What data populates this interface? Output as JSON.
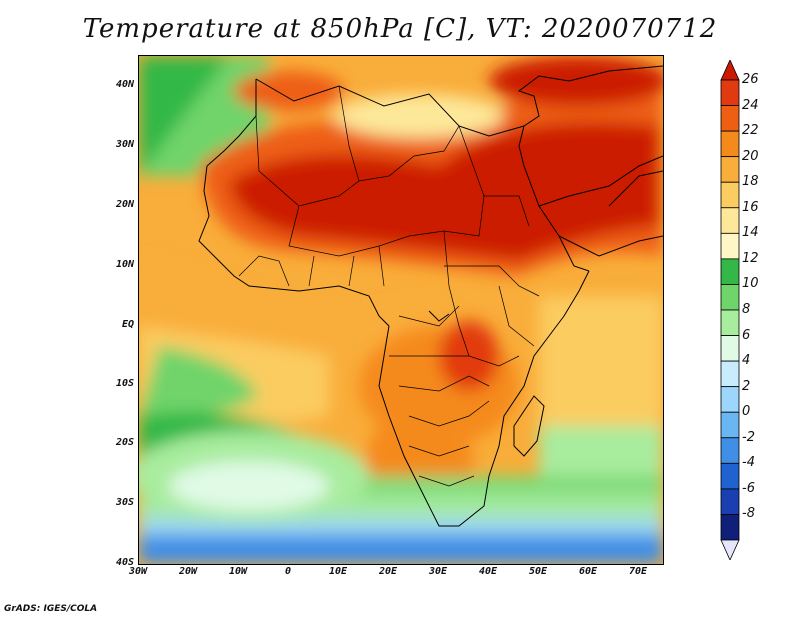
{
  "title": "Temperature at 850hPa [C], VT: 2020070712",
  "footer": "GrADS: IGES/COLA",
  "map": {
    "lon_range": [
      -30,
      75
    ],
    "lat_range": [
      -40,
      45
    ],
    "lat_labels": [
      "40N",
      "30N",
      "20N",
      "10N",
      "EQ",
      "10S",
      "20S",
      "30S",
      "40S"
    ],
    "lon_labels": [
      "30W",
      "20W",
      "10W",
      "0",
      "10E",
      "20E",
      "30E",
      "40E",
      "50E",
      "60E",
      "70E"
    ]
  },
  "colorbar": {
    "levels": [
      "26",
      "24",
      "22",
      "20",
      "18",
      "16",
      "14",
      "12",
      "10",
      "8",
      "6",
      "4",
      "2",
      "0",
      "-2",
      "-4",
      "-6",
      "-8"
    ],
    "colors": [
      "#cc1a00",
      "#e23a10",
      "#ee5f14",
      "#f58a1c",
      "#f9ad3a",
      "#fbcc60",
      "#fde89a",
      "#fef6c4",
      "#33b847",
      "#6fd46a",
      "#a8ec9e",
      "#e0fae6",
      "#c8ecfc",
      "#9cd6fa",
      "#6ab6f2",
      "#3f8fe6",
      "#2062d0",
      "#1a3fb0",
      "#10207a",
      "#e6e6fa"
    ]
  }
}
